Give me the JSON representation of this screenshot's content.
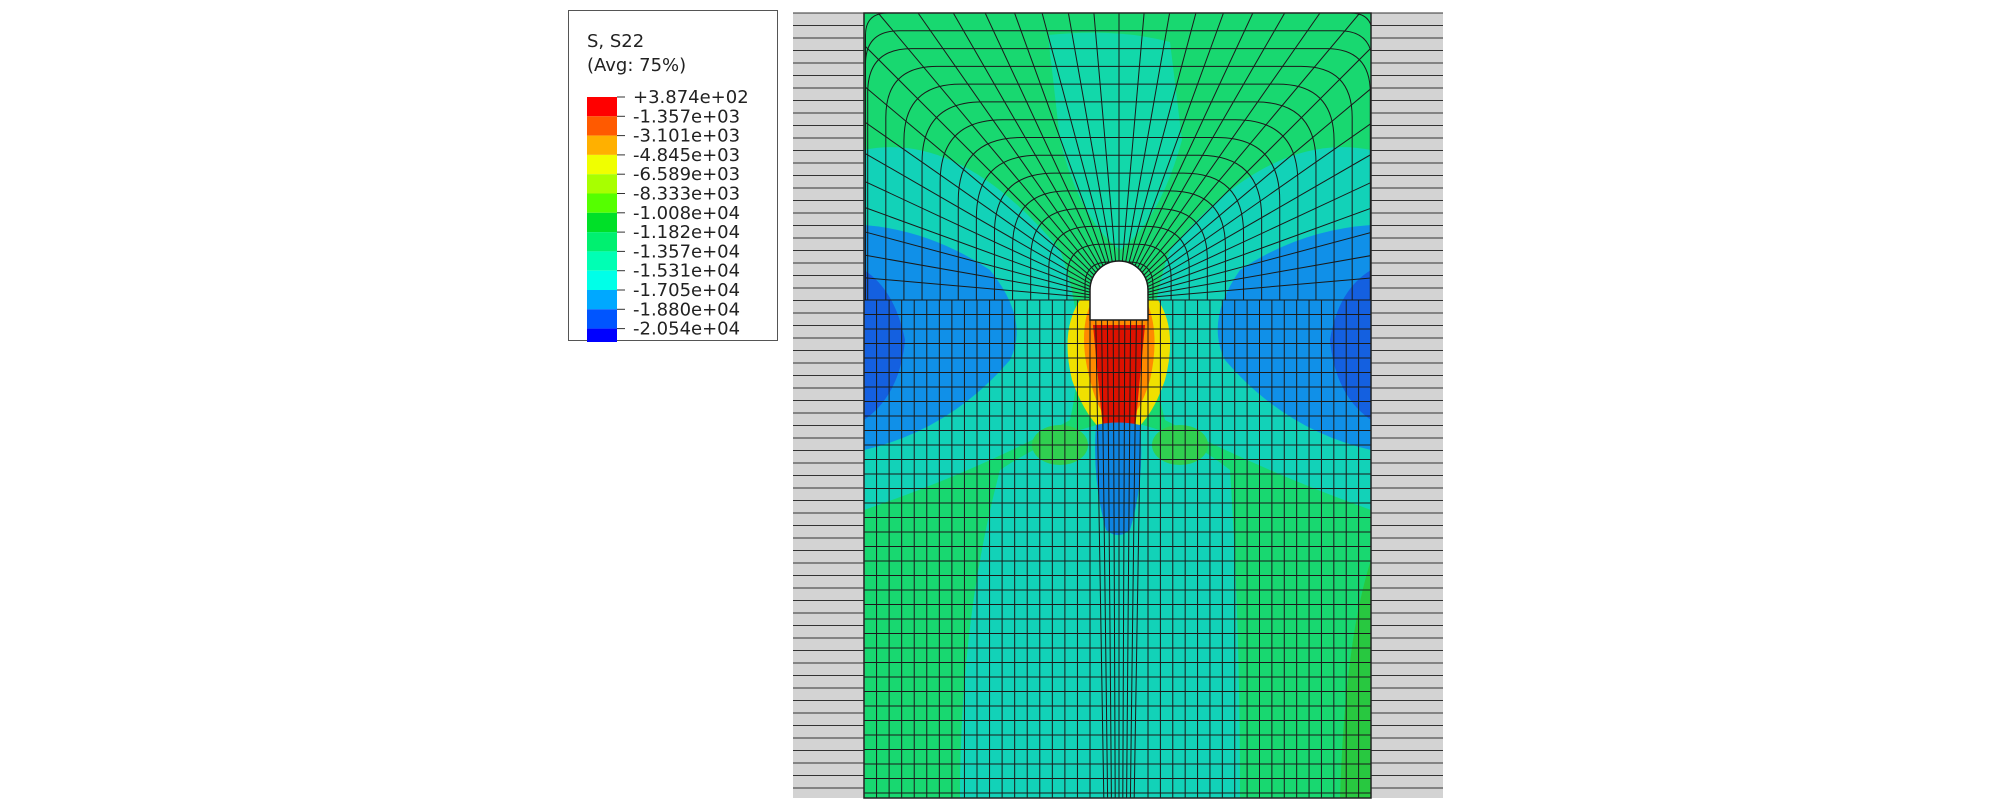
{
  "legend": {
    "title_line1": "S, S22",
    "title_line2": "(Avg: 75%)",
    "levels": [
      {
        "label": "+3.874e+02",
        "color": "#ff0000"
      },
      {
        "label": "-1.357e+03",
        "color": "#ff5a00"
      },
      {
        "label": "-3.101e+03",
        "color": "#ffb000"
      },
      {
        "label": "-4.845e+03",
        "color": "#f0ff00"
      },
      {
        "label": "-6.589e+03",
        "color": "#a8ff00"
      },
      {
        "label": "-8.333e+03",
        "color": "#55ff00"
      },
      {
        "label": "-1.008e+04",
        "color": "#00e028"
      },
      {
        "label": "-1.182e+04",
        "color": "#00f070"
      },
      {
        "label": "-1.357e+04",
        "color": "#00ffb4"
      },
      {
        "label": "-1.531e+04",
        "color": "#00ffe8"
      },
      {
        "label": "-1.705e+04",
        "color": "#00a8ff"
      },
      {
        "label": "-1.880e+04",
        "color": "#0055ff"
      },
      {
        "label": "-2.054e+04",
        "color": "#0000ff"
      }
    ]
  },
  "colors": {
    "base_field": "#18d870",
    "side_blocks": "#d3d3d3",
    "mesh_lines": "#1a1a1a",
    "tension_zone": "#dd1100",
    "compression_zone": "#1060e8",
    "mid_zone": "#12d2b8"
  },
  "model": {
    "description_icon": "fea-contour-plot"
  }
}
